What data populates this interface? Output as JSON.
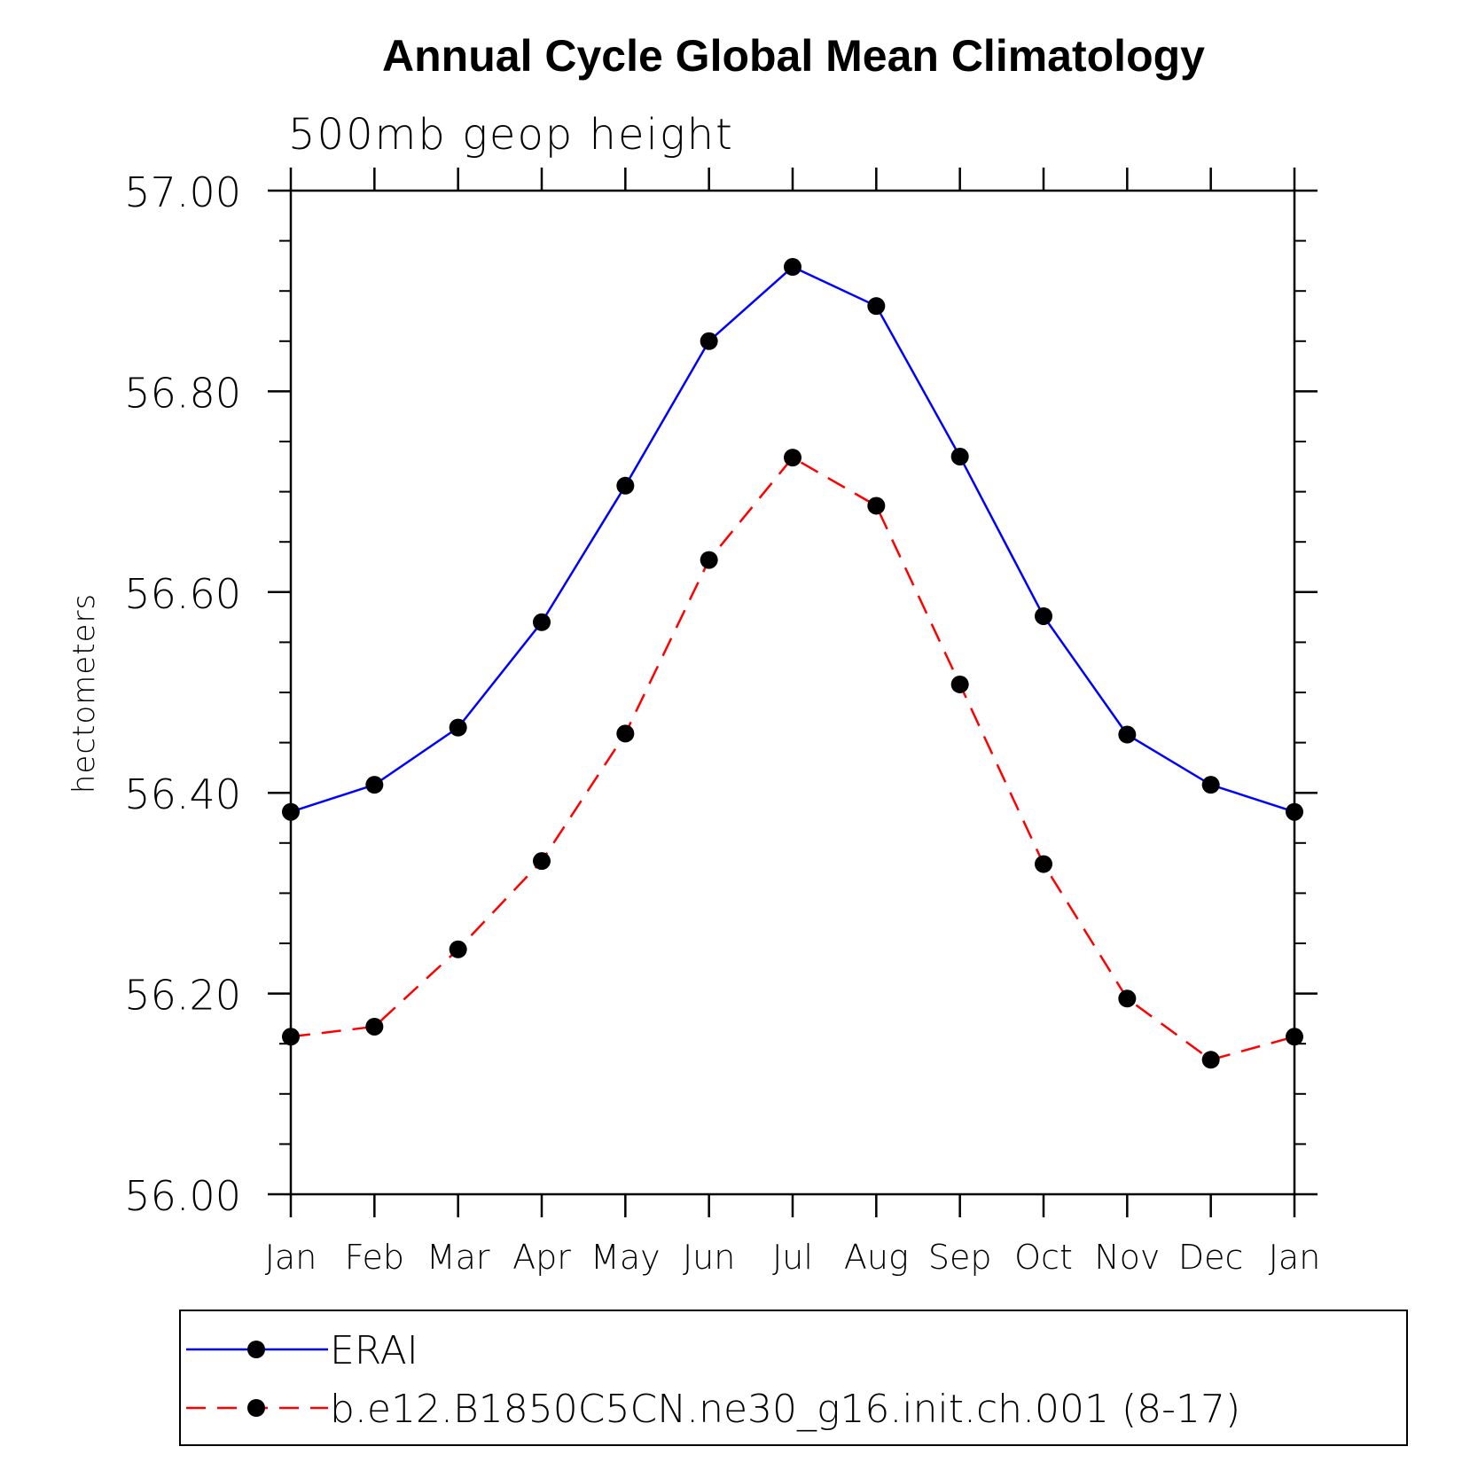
{
  "chart_data": {
    "type": "line",
    "title": "Annual Cycle Global Mean Climatology",
    "subtitle": "500mb geop height",
    "ylabel": "hectometers",
    "xlabel": "",
    "categories": [
      "Jan",
      "Feb",
      "Mar",
      "Apr",
      "May",
      "Jun",
      "Jul",
      "Aug",
      "Sep",
      "Oct",
      "Nov",
      "Dec",
      "Jan"
    ],
    "ylim": [
      56.0,
      57.0
    ],
    "yticks": [
      "56.00",
      "56.20",
      "56.40",
      "56.60",
      "56.80",
      "57.00"
    ],
    "grid": false,
    "legend_position": "bottom",
    "series": [
      {
        "name": "ERAI",
        "color": "#0000ff",
        "line_style": "solid",
        "marker": "filled-circle",
        "values": [
          56.381,
          56.408,
          56.465,
          56.57,
          56.706,
          56.85,
          56.924,
          56.885,
          56.735,
          56.576,
          56.458,
          56.408,
          56.381
        ]
      },
      {
        "name": "b.e12.B1850C5CN.ne30_g16.init.ch.001 (8-17)",
        "color": "#ff0000",
        "line_style": "dashed",
        "marker": "filled-circle",
        "values": [
          56.157,
          56.167,
          56.244,
          56.332,
          56.459,
          56.632,
          56.734,
          56.686,
          56.508,
          56.329,
          56.195,
          56.134,
          56.157
        ]
      }
    ]
  }
}
